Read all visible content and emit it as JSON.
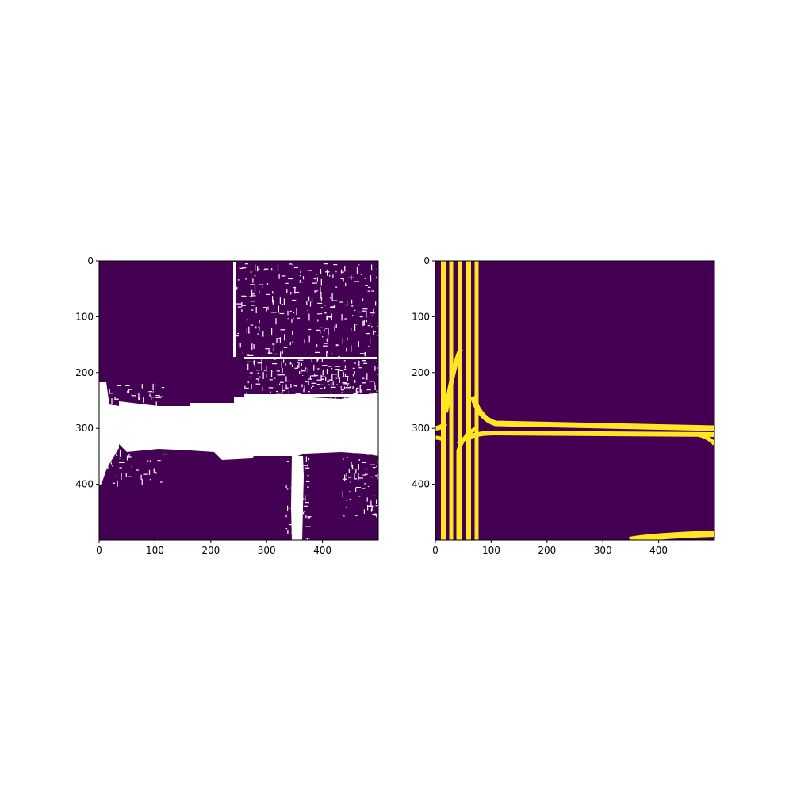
{
  "colors": {
    "background_class": "#440154",
    "left_foreground": "#ffffff",
    "right_foreground": "#fde725",
    "axes": "#000000"
  },
  "chart_data": [
    {
      "type": "heatmap",
      "name": "left-panel",
      "image_size": [
        500,
        500
      ],
      "xlim": [
        0,
        500
      ],
      "ylim": [
        500,
        0
      ],
      "xticks": [
        "0",
        "100",
        "200",
        "300",
        "400"
      ],
      "yticks": [
        "0",
        "100",
        "200",
        "300",
        "400"
      ],
      "colormap": "binary mask, purple background with white foreground",
      "grid": false
    },
    {
      "type": "heatmap",
      "name": "right-panel",
      "image_size": [
        500,
        500
      ],
      "xlim": [
        0,
        500
      ],
      "ylim": [
        500,
        0
      ],
      "xticks": [
        "0",
        "100",
        "200",
        "300",
        "400"
      ],
      "yticks": [
        "0",
        "100",
        "200",
        "300",
        "400"
      ],
      "colormap": "viridis binary mask, purple background with yellow lane lines",
      "grid": false
    }
  ]
}
